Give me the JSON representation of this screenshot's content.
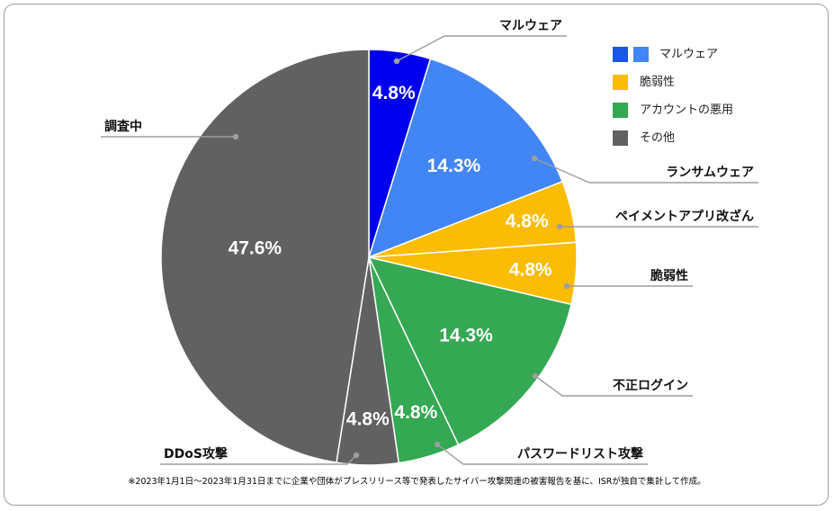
{
  "chart_data": {
    "type": "pie",
    "categories": [
      "マルウェア",
      "ランサムウェア",
      "ペイメントアプリ改ざん",
      "脆弱性",
      "不正ログイン",
      "パスワードリスト攻撃",
      "DDoS攻撃",
      "調査中"
    ],
    "values": [
      4.8,
      14.3,
      4.8,
      4.8,
      14.3,
      4.8,
      4.8,
      47.6
    ],
    "value_labels": [
      "4.8%",
      "14.3%",
      "4.8%",
      "4.8%",
      "14.3%",
      "4.8%",
      "4.8%",
      "47.6%"
    ],
    "colors": [
      "#0000ee",
      "#4285f4",
      "#fbbc04",
      "#fbbc04",
      "#34a853",
      "#34a853",
      "#616161",
      "#616161"
    ],
    "legend_position": "top-right",
    "legend": [
      {
        "label": "マルウェア",
        "colors": [
          "#1a56e0",
          "#4285f4"
        ]
      },
      {
        "label": "脆弱性",
        "colors": [
          "#fbbc04"
        ]
      },
      {
        "label": "アカウントの悪用",
        "colors": [
          "#34a853"
        ]
      },
      {
        "label": "その他",
        "colors": [
          "#616161"
        ]
      }
    ]
  },
  "footnote": "※2023年1月1日～2023年1月31日までに企業や団体がプレスリリース等で発表したサイバー攻撃関連の被害報告を基に、ISRが独自で集計して作成。"
}
